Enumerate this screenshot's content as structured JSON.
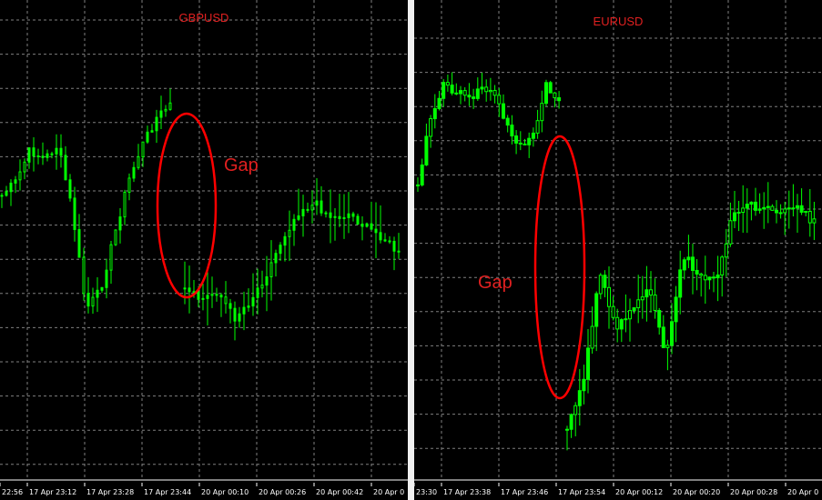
{
  "colors": {
    "background": "#000000",
    "grid": "#7f7f7f",
    "candle": "#00ff00",
    "annotation": "#ff0000",
    "text": "#ffffff"
  },
  "chart_data": [
    {
      "type": "candlestick",
      "title": "GBPUSD",
      "annotation": "Gap",
      "x_ticks": [
        "22:56",
        "17 Apr 23:12",
        "17 Apr 23:28",
        "17 Apr 23:44",
        "20 Apr 00:10",
        "20 Apr 00:26",
        "20 Apr 00:42",
        "20 Apr 0"
      ],
      "grid": true
    },
    {
      "type": "candlestick",
      "title": "EURUSD",
      "annotation": "Gap",
      "x_ticks": [
        "23:30",
        "17 Apr 23:38",
        "17 Apr 23:46",
        "17 Apr 23:54",
        "20 Apr 00:12",
        "20 Apr 00:20",
        "20 Apr 00:28",
        "20 Apr 0"
      ],
      "grid": true
    }
  ]
}
